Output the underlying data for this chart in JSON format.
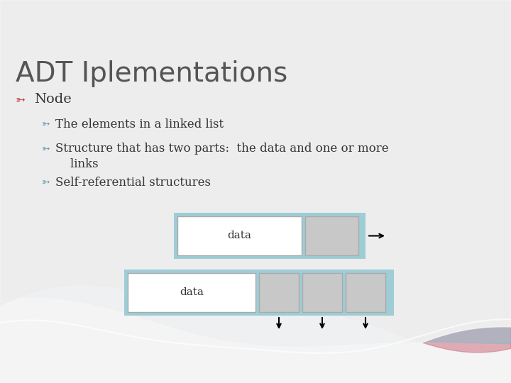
{
  "title": "ADT Iplementations",
  "title_fontsize": 28,
  "title_color": "#555555",
  "bg_color": "#f2f2f2",
  "bullet1": "Node",
  "bullet2": "The elements in a linked list",
  "bullet3_line1": "Structure that has two parts:  the data and one or more",
  "bullet3_line2": "    links",
  "bullet4": "Self-referential structures",
  "bullet_color_1": "#c04050",
  "bullet_color_2": "#5a9aaa",
  "text_color": "#333333",
  "box_border_color": "#9ecdd6",
  "box_fill_white": "#ffffff",
  "box_fill_gray": "#c8c8c8",
  "slide_bg": "#f4f4f4"
}
